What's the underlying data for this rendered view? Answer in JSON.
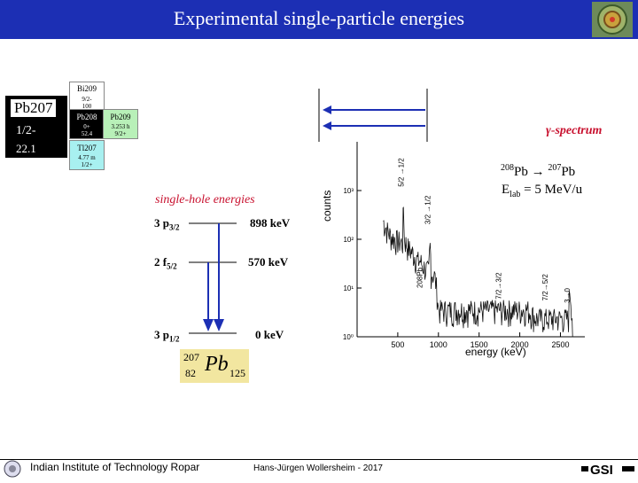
{
  "slide": {
    "title": "Experimental single-particle energies",
    "footer_left": "Indian Institute of Technology Ropar",
    "footer_center": "Hans-Jürgen Wollersheim - 2017"
  },
  "nuclide_chart": {
    "center": {
      "name": "Pb207",
      "spin": "1/2-",
      "value": "22.1"
    },
    "cells": [
      {
        "name": "Bi209",
        "line2": "9/2-",
        "line3": "100"
      },
      {
        "name": "Pb208",
        "line2": "0+",
        "line3": "52.4"
      },
      {
        "name": "Pb209",
        "line2": "3.253 h",
        "line3": "9/2+"
      },
      {
        "name": "Tl207",
        "line2": "4.77 m",
        "line3": "1/2+"
      }
    ]
  },
  "spectrum": {
    "label": "γ-spectrum",
    "reaction_line1_a": "208",
    "reaction_line1_b": "Pb → ",
    "reaction_line1_c": "207",
    "reaction_line1_d": "Pb",
    "reaction_line2_a": "E",
    "reaction_line2_b": "lab",
    "reaction_line2_c": " = 5 MeV/u",
    "ylabel": "counts",
    "xlabel": "energy (keV)",
    "peaks": [
      {
        "label": "5/2 →1/2"
      },
      {
        "label": "3/2 →1/2"
      },
      {
        "label": "208Pb"
      },
      {
        "label": "7/2→3/2"
      },
      {
        "label": "7/2→5/2"
      },
      {
        "label": "3→0"
      }
    ]
  },
  "levels": {
    "title": "single-hole energies",
    "items": [
      {
        "orbital": "3 p",
        "sub": "3/2",
        "energy": "898 keV"
      },
      {
        "orbital": "2 f",
        "sub": "5/2",
        "energy": "570 keV"
      },
      {
        "orbital": "3 p",
        "sub": "1/2",
        "energy": "0 keV"
      }
    ],
    "nucleus": {
      "A": "207",
      "Z": "82",
      "symbol": "Pb",
      "N": "125"
    }
  },
  "chart_data": {
    "type": "line",
    "title": "",
    "xlabel": "energy (keV)",
    "ylabel": "counts",
    "xlim": [
      0,
      2800
    ],
    "ylim_log": [
      1,
      10000
    ],
    "x_ticks": [
      "500",
      "1000",
      "1500",
      "2000",
      "2500"
    ],
    "y_ticks": [
      "10⁰",
      "10¹",
      "10²",
      "10³"
    ],
    "series": [
      {
        "x": [
          320,
          350,
          380,
          410,
          440,
          470,
          500,
          530,
          560,
          570,
          580,
          600,
          620,
          650,
          680,
          700,
          720,
          750,
          780,
          800,
          850,
          880,
          898,
          910,
          950,
          1000,
          1050,
          1100,
          1200,
          1300,
          1400,
          1500,
          1600,
          1700,
          1800,
          1900,
          2000,
          2100,
          2200,
          2300,
          2400,
          2500,
          2600,
          2614,
          2650
        ],
        "y": [
          200,
          150,
          120,
          100,
          90,
          85,
          80,
          75,
          70,
          400,
          90,
          70,
          60,
          50,
          45,
          40,
          35,
          30,
          30,
          25,
          20,
          18,
          60,
          18,
          15,
          3,
          3,
          3,
          3,
          3,
          3,
          3,
          3,
          3,
          3,
          3,
          3,
          3,
          2,
          2,
          2,
          2,
          2,
          8,
          1
        ]
      }
    ]
  }
}
